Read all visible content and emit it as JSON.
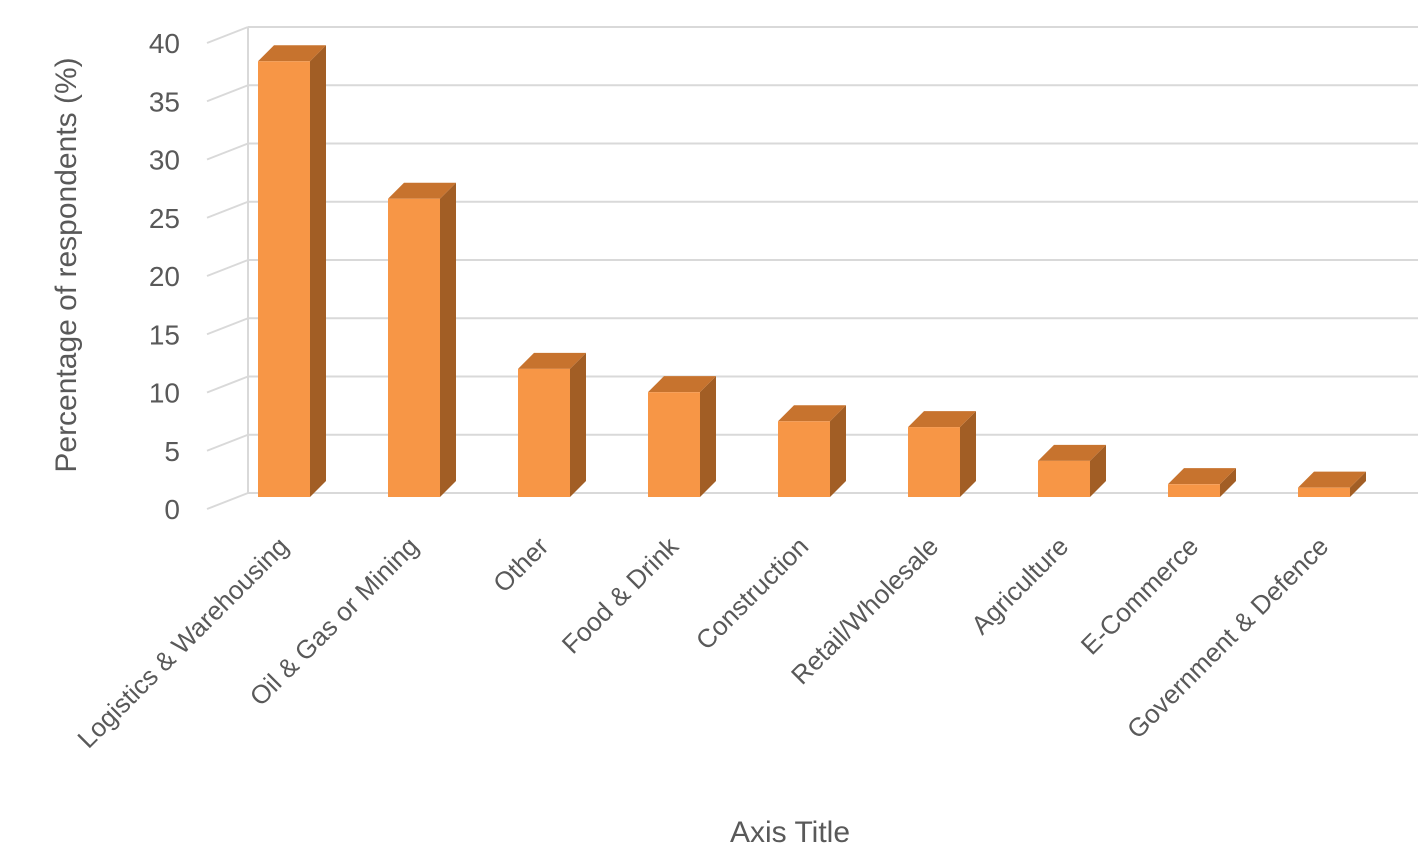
{
  "chart_data": {
    "type": "bar",
    "style": "3d-column",
    "categories": [
      "Logistics & Warehousing",
      "Oil & Gas or Mining",
      "Other",
      "Food & Drink",
      "Construction",
      "Retail/Wholesale",
      "Agriculture",
      "E-Commerce",
      "Government & Defence"
    ],
    "values": [
      37.4,
      25.6,
      11.0,
      9.0,
      6.5,
      6.0,
      3.1,
      1.1,
      0.8
    ],
    "xlabel": "Axis Title",
    "ylabel": "Percentage of respondents (%)",
    "ylim": [
      0,
      40
    ],
    "yticks": [
      0,
      5,
      10,
      15,
      20,
      25,
      30,
      35,
      40
    ],
    "grid": true,
    "legend": "none",
    "colors": {
      "bar_front": "#F79646",
      "bar_side": "#A25E25",
      "bar_top": "#C7732E",
      "grid": "#D9D9D9",
      "text": "#595959"
    }
  }
}
